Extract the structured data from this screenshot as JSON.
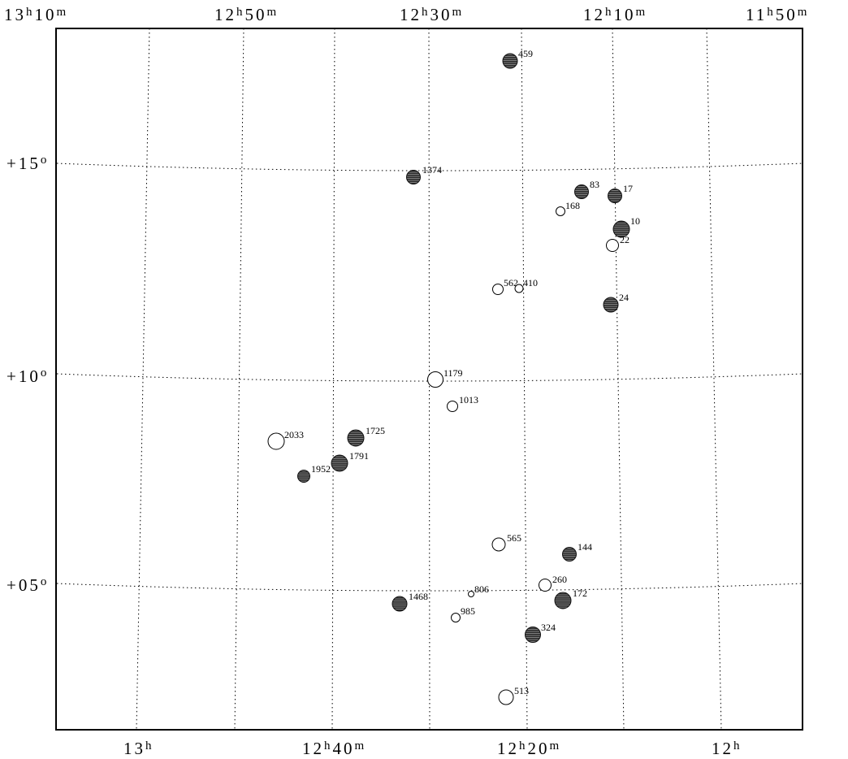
{
  "axis": {
    "top_ticks": [
      {
        "h": "13",
        "m": "10"
      },
      {
        "h": "12",
        "m": "50"
      },
      {
        "h": "12",
        "m": "30"
      },
      {
        "h": "12",
        "m": "10"
      },
      {
        "h": "11",
        "m": "50"
      }
    ],
    "bottom_ticks": [
      {
        "h": "13",
        "m": ""
      },
      {
        "h": "12",
        "m": "40"
      },
      {
        "h": "12",
        "m": "20"
      },
      {
        "h": "12",
        "m": ""
      }
    ],
    "left_ticks": [
      {
        "sign": "+",
        "deg": "15"
      },
      {
        "sign": "+",
        "deg": "10"
      },
      {
        "sign": "+",
        "deg": "05"
      }
    ],
    "hour_unit": "h",
    "minute_unit": "m",
    "degree_unit": "o"
  },
  "colors": {
    "filled_marker": "#2b2b2b",
    "open_marker": "#ffffff",
    "grid": "#000000"
  },
  "objects": [
    {
      "label": "459",
      "filled": true
    },
    {
      "label": "1374",
      "filled": true
    },
    {
      "label": "83",
      "filled": true
    },
    {
      "label": "17",
      "filled": true
    },
    {
      "label": "168",
      "filled": false
    },
    {
      "label": "10",
      "filled": true
    },
    {
      "label": "22",
      "filled": false
    },
    {
      "label": "562",
      "filled": false
    },
    {
      "label": "410",
      "filled": false
    },
    {
      "label": "24",
      "filled": true
    },
    {
      "label": "1179",
      "filled": false
    },
    {
      "label": "1013",
      "filled": false
    },
    {
      "label": "2033",
      "filled": false
    },
    {
      "label": "1725",
      "filled": true
    },
    {
      "label": "1791",
      "filled": true
    },
    {
      "label": "1952",
      "filled": true
    },
    {
      "label": "565",
      "filled": false
    },
    {
      "label": "144",
      "filled": true
    },
    {
      "label": "260",
      "filled": false
    },
    {
      "label": "806",
      "filled": false
    },
    {
      "label": "172",
      "filled": true
    },
    {
      "label": "1468",
      "filled": true
    },
    {
      "label": "985",
      "filled": false
    },
    {
      "label": "324",
      "filled": true
    },
    {
      "label": "513",
      "filled": false
    }
  ]
}
